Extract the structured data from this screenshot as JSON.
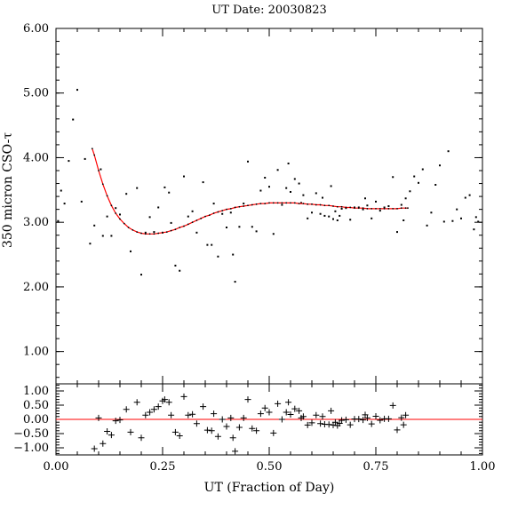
{
  "chart_data": [
    {
      "type": "scatter",
      "title": "UT Date: 20030823",
      "ylabel": "350 micron CSO-τ",
      "xlabel": "",
      "xlim": [
        0,
        1
      ],
      "ylim": [
        0.5,
        6.0
      ],
      "y_ticks": [
        "1.00",
        "2.00",
        "3.00",
        "4.00",
        "5.00",
        "6.00"
      ],
      "x_ticks": [],
      "grid": false,
      "series": [
        {
          "marker": "dot",
          "color": "#000000",
          "x": [
            0.005,
            0.012,
            0.02,
            0.03,
            0.04,
            0.05,
            0.06,
            0.068,
            0.08,
            0.09,
            0.105,
            0.11,
            0.12,
            0.13,
            0.14,
            0.15,
            0.165,
            0.175,
            0.19,
            0.2,
            0.21,
            0.22,
            0.23,
            0.24,
            0.25,
            0.255,
            0.265,
            0.27,
            0.28,
            0.29,
            0.3,
            0.31,
            0.32,
            0.33,
            0.345,
            0.355,
            0.365,
            0.37,
            0.38,
            0.39,
            0.4,
            0.41,
            0.415,
            0.42,
            0.43,
            0.44,
            0.45,
            0.46,
            0.47,
            0.48,
            0.49,
            0.5,
            0.51,
            0.52,
            0.53,
            0.54,
            0.545,
            0.55,
            0.56,
            0.57,
            0.575,
            0.58,
            0.59,
            0.6,
            0.61,
            0.62,
            0.625,
            0.63,
            0.64,
            0.645,
            0.65,
            0.655,
            0.66,
            0.665,
            0.67,
            0.68,
            0.69,
            0.7,
            0.71,
            0.72,
            0.725,
            0.73,
            0.74,
            0.75,
            0.76,
            0.77,
            0.78,
            0.79,
            0.8,
            0.81,
            0.815,
            0.82,
            0.83,
            0.84,
            0.85,
            0.86,
            0.87,
            0.88,
            0.89,
            0.9,
            0.91,
            0.92,
            0.93,
            0.94,
            0.95,
            0.96,
            0.97,
            0.98,
            0.985,
            0.99
          ],
          "y": [
            3.02,
            3.49,
            3.29,
            3.95,
            4.59,
            5.05,
            3.32,
            3.98,
            2.67,
            2.95,
            3.82,
            2.79,
            3.09,
            2.79,
            3.22,
            3.12,
            3.44,
            2.55,
            3.53,
            2.19,
            2.84,
            3.08,
            2.85,
            3.23,
            2.84,
            3.54,
            3.46,
            2.99,
            2.33,
            2.25,
            3.71,
            3.09,
            3.17,
            2.84,
            3.62,
            2.65,
            2.65,
            3.29,
            2.47,
            3.13,
            2.92,
            3.15,
            2.5,
            2.08,
            2.93,
            3.29,
            3.94,
            2.93,
            2.86,
            3.49,
            3.69,
            3.55,
            2.82,
            3.81,
            3.27,
            3.53,
            3.91,
            3.47,
            3.67,
            3.6,
            3.3,
            3.42,
            3.06,
            3.15,
            3.45,
            3.13,
            3.38,
            3.1,
            3.09,
            3.56,
            3.05,
            3.17,
            3.03,
            3.1,
            3.21,
            3.22,
            3.04,
            3.23,
            3.23,
            3.2,
            3.37,
            3.26,
            3.06,
            3.32,
            3.18,
            3.23,
            3.25,
            3.7,
            2.85,
            3.27,
            3.03,
            3.37,
            3.48,
            3.71,
            3.61,
            3.82,
            2.95,
            3.15,
            3.58,
            3.88,
            3.01,
            4.1,
            3.02,
            3.2,
            3.06,
            3.38,
            3.42,
            2.89,
            3.08,
            3.01
          ]
        },
        {
          "type": "line",
          "color": "#ff0000",
          "marker": "dot",
          "x": [
            0.085,
            0.09,
            0.1,
            0.11,
            0.12,
            0.13,
            0.14,
            0.15,
            0.16,
            0.17,
            0.18,
            0.19,
            0.2,
            0.21,
            0.22,
            0.23,
            0.24,
            0.25,
            0.26,
            0.27,
            0.28,
            0.29,
            0.3,
            0.31,
            0.32,
            0.33,
            0.34,
            0.35,
            0.36,
            0.37,
            0.38,
            0.39,
            0.4,
            0.41,
            0.42,
            0.43,
            0.44,
            0.45,
            0.46,
            0.47,
            0.48,
            0.49,
            0.5,
            0.51,
            0.52,
            0.53,
            0.54,
            0.55,
            0.56,
            0.57,
            0.58,
            0.59,
            0.6,
            0.61,
            0.62,
            0.63,
            0.64,
            0.65,
            0.66,
            0.67,
            0.68,
            0.69,
            0.7,
            0.71,
            0.72,
            0.73,
            0.74,
            0.75,
            0.76,
            0.77,
            0.78,
            0.79,
            0.8,
            0.81,
            0.82,
            0.825
          ],
          "y": [
            4.14,
            4.04,
            3.8,
            3.59,
            3.41,
            3.26,
            3.14,
            3.05,
            2.98,
            2.92,
            2.88,
            2.85,
            2.83,
            2.82,
            2.82,
            2.82,
            2.83,
            2.84,
            2.85,
            2.87,
            2.89,
            2.92,
            2.94,
            2.97,
            3.0,
            3.03,
            3.06,
            3.09,
            3.11,
            3.14,
            3.16,
            3.18,
            3.2,
            3.21,
            3.23,
            3.24,
            3.25,
            3.26,
            3.27,
            3.28,
            3.29,
            3.29,
            3.3,
            3.3,
            3.3,
            3.3,
            3.3,
            3.3,
            3.3,
            3.29,
            3.29,
            3.28,
            3.28,
            3.27,
            3.27,
            3.26,
            3.26,
            3.25,
            3.24,
            3.24,
            3.23,
            3.23,
            3.22,
            3.22,
            3.22,
            3.21,
            3.21,
            3.21,
            3.21,
            3.21,
            3.21,
            3.21,
            3.21,
            3.22,
            3.22,
            3.22
          ]
        }
      ]
    },
    {
      "type": "scatter",
      "title": "",
      "xlabel": "UT (Fraction of Day)",
      "ylabel": "",
      "xlim": [
        0,
        1
      ],
      "ylim": [
        -1.25,
        1.25
      ],
      "y_ticks": [
        "1.00",
        "0.50",
        "0.00",
        "−0.50",
        "−1.00"
      ],
      "x_ticks": [
        "0.00",
        "0.25",
        "0.50",
        "0.75",
        "1.00"
      ],
      "grid": false,
      "reference_line": {
        "y": 0,
        "color": "#ff0000"
      },
      "series": [
        {
          "marker": "plus",
          "color": "#000000",
          "x": [
            0.09,
            0.1,
            0.11,
            0.12,
            0.13,
            0.14,
            0.15,
            0.165,
            0.175,
            0.19,
            0.2,
            0.21,
            0.22,
            0.23,
            0.24,
            0.25,
            0.255,
            0.265,
            0.27,
            0.28,
            0.29,
            0.3,
            0.31,
            0.32,
            0.33,
            0.345,
            0.355,
            0.365,
            0.37,
            0.38,
            0.39,
            0.4,
            0.41,
            0.415,
            0.42,
            0.43,
            0.44,
            0.45,
            0.46,
            0.47,
            0.48,
            0.49,
            0.5,
            0.51,
            0.52,
            0.53,
            0.54,
            0.545,
            0.55,
            0.56,
            0.57,
            0.575,
            0.58,
            0.59,
            0.6,
            0.61,
            0.62,
            0.625,
            0.63,
            0.64,
            0.645,
            0.65,
            0.655,
            0.66,
            0.665,
            0.67,
            0.68,
            0.69,
            0.7,
            0.71,
            0.72,
            0.725,
            0.73,
            0.74,
            0.75,
            0.76,
            0.77,
            0.78,
            0.79,
            0.8,
            0.81,
            0.815,
            0.82
          ],
          "y": [
            -1.03,
            0.05,
            -0.85,
            -0.42,
            -0.55,
            -0.05,
            -0.02,
            0.35,
            -0.45,
            0.6,
            -0.65,
            0.15,
            0.25,
            0.35,
            0.45,
            0.65,
            0.7,
            0.6,
            0.15,
            -0.45,
            -0.58,
            0.8,
            0.15,
            0.18,
            -0.15,
            0.45,
            -0.38,
            -0.4,
            0.2,
            -0.6,
            0.0,
            -0.25,
            0.05,
            -0.65,
            -1.12,
            -0.28,
            0.05,
            0.7,
            -0.32,
            -0.4,
            0.2,
            0.4,
            0.25,
            -0.48,
            0.55,
            0.0,
            0.25,
            0.6,
            0.17,
            0.37,
            0.3,
            0.05,
            0.1,
            -0.2,
            -0.12,
            0.15,
            -0.15,
            0.1,
            -0.17,
            -0.18,
            0.3,
            -0.2,
            -0.1,
            -0.22,
            -0.14,
            -0.03,
            -0.01,
            -0.19,
            0.01,
            0.01,
            -0.02,
            0.16,
            0.05,
            -0.16,
            0.11,
            -0.03,
            0.02,
            0.02,
            0.49,
            -0.37,
            0.06,
            -0.19,
            0.15
          ]
        }
      ]
    }
  ]
}
